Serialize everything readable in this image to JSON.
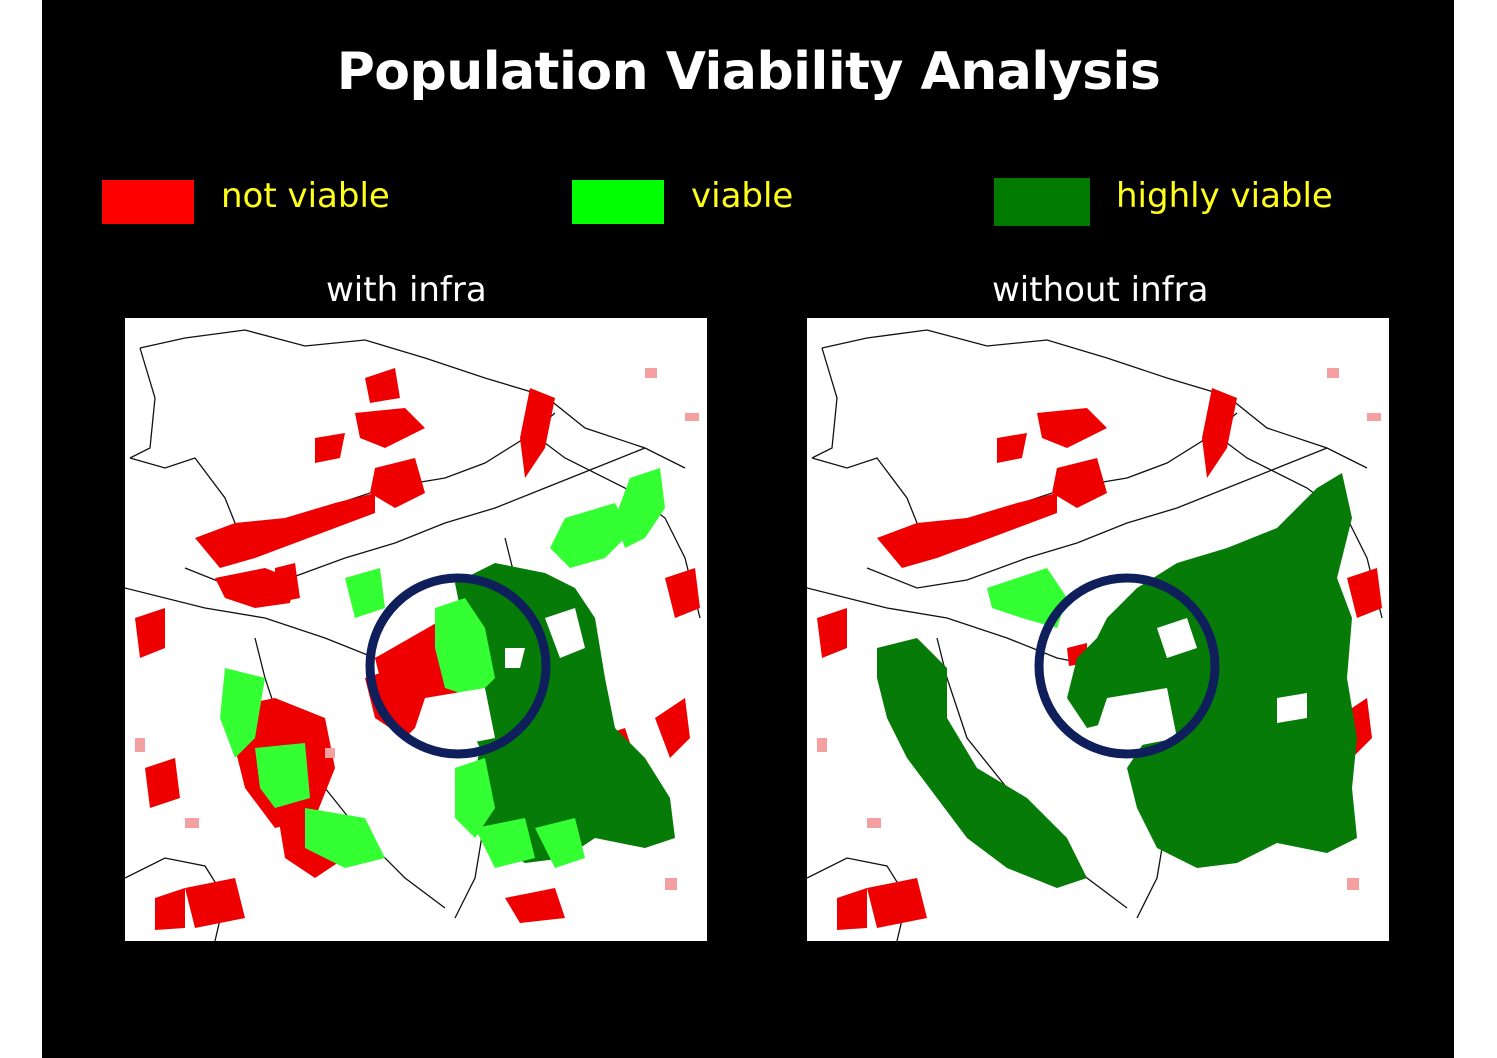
{
  "title": "Population Viability Analysis",
  "legend": [
    {
      "label": "not viable",
      "color": "#ff0000"
    },
    {
      "label": "viable",
      "color": "#00ff00"
    },
    {
      "label": "highly viable",
      "color": "#007a00"
    }
  ],
  "panels": [
    {
      "label": "with infra"
    },
    {
      "label": "without infra"
    }
  ],
  "colors": {
    "background": "#000000",
    "legend_text": "#ffff1a",
    "highlight_circle": "#0f1f5c"
  }
}
